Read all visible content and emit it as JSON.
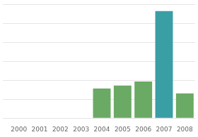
{
  "chart_data": {
    "type": "bar",
    "categories": [
      "2000",
      "2001",
      "2002",
      "2003",
      "2004",
      "2005",
      "2006",
      "2007",
      "2008"
    ],
    "values": [
      0,
      0,
      0,
      0,
      30,
      33,
      37,
      108,
      25
    ],
    "colors": [
      "#6aaa64",
      "#6aaa64",
      "#6aaa64",
      "#6aaa64",
      "#6aaa64",
      "#6aaa64",
      "#6aaa64",
      "#3a9ea5",
      "#6aaa64"
    ],
    "ylim": [
      0,
      115
    ],
    "yticks": [
      0,
      19.166666666666668,
      38.333333333333336,
      57.5,
      76.66666666666667,
      95.83333333333334,
      115
    ],
    "grid": true,
    "tick_labels": "x"
  }
}
